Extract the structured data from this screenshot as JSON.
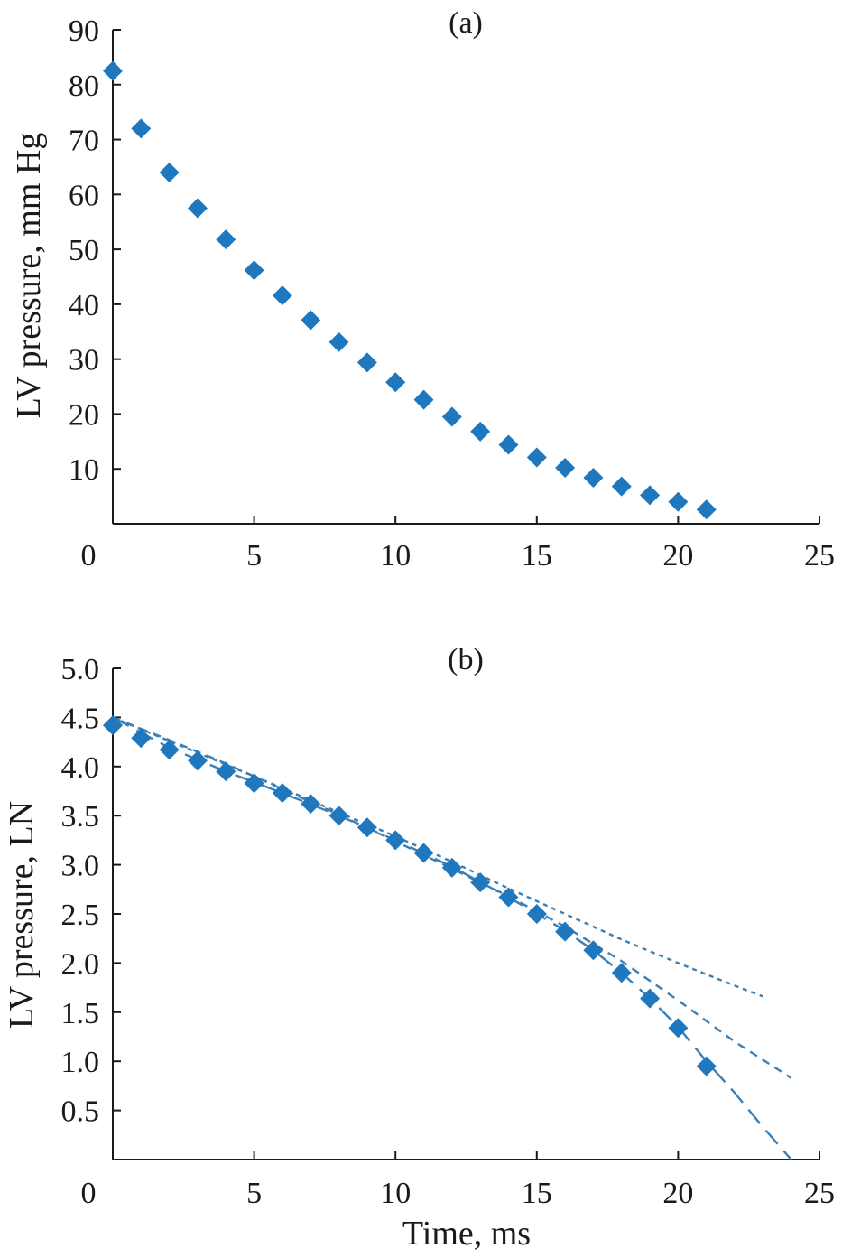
{
  "chart_data": [
    {
      "type": "scatter",
      "panel_label": "(a)",
      "xlabel": "",
      "ylabel": "LV pressure, mm Hg",
      "xlim": [
        0,
        25
      ],
      "ylim": [
        0,
        90
      ],
      "x_ticks": [
        "0",
        "5",
        "10",
        "15",
        "20",
        "25"
      ],
      "x_tick_values": [
        0,
        5,
        10,
        15,
        20,
        25
      ],
      "y_ticks": [
        "10",
        "20",
        "30",
        "40",
        "50",
        "60",
        "70",
        "80",
        "90"
      ],
      "y_tick_values": [
        10,
        20,
        30,
        40,
        50,
        60,
        70,
        80,
        90
      ],
      "marker_color": "#1f77bd",
      "series": [
        {
          "marker": "diamond",
          "x": [
            0,
            1,
            2,
            3,
            4,
            5,
            6,
            7,
            8,
            9,
            10,
            11,
            12,
            13,
            14,
            15,
            16,
            17,
            18,
            19,
            20,
            21
          ],
          "y": [
            82.5,
            72,
            64,
            57.5,
            51.8,
            46.2,
            41.6,
            37.1,
            33.1,
            29.4,
            25.8,
            22.6,
            19.5,
            16.8,
            14.4,
            12.1,
            10.2,
            8.4,
            6.8,
            5.2,
            4,
            2.6
          ]
        }
      ]
    },
    {
      "type": "scatter",
      "panel_label": "(b)",
      "xlabel": "Time, ms",
      "ylabel": "LV pressure, LN",
      "xlim": [
        0,
        25
      ],
      "ylim": [
        0,
        5
      ],
      "x_ticks": [
        "0",
        "5",
        "10",
        "15",
        "20",
        "25"
      ],
      "x_tick_values": [
        0,
        5,
        10,
        15,
        20,
        25
      ],
      "y_ticks": [
        "0.5",
        "1.0",
        "1.5",
        "2.0",
        "2.5",
        "3.0",
        "3.5",
        "4.0",
        "4.5",
        "5.0"
      ],
      "y_tick_values": [
        0.5,
        1,
        1.5,
        2,
        2.5,
        3,
        3.5,
        4,
        4.5,
        5
      ],
      "marker_color": "#1f77bd",
      "line_color": "#3a7fb5",
      "series": [
        {
          "marker": "diamond",
          "x": [
            0,
            1,
            2,
            3,
            4,
            5,
            6,
            7,
            8,
            9,
            10,
            11,
            12,
            13,
            14,
            15,
            16,
            17,
            18,
            19,
            20,
            21
          ],
          "y": [
            4.42,
            4.29,
            4.17,
            4.06,
            3.95,
            3.83,
            3.73,
            3.62,
            3.5,
            3.38,
            3.25,
            3.12,
            2.97,
            2.82,
            2.67,
            2.5,
            2.32,
            2.13,
            1.9,
            1.64,
            1.34,
            0.95
          ]
        }
      ],
      "fit_lines": [
        {
          "style": "short-dash",
          "x": [
            0,
            2,
            4,
            6,
            8,
            10,
            12,
            14,
            16,
            18,
            20,
            22,
            23
          ],
          "y": [
            4.5,
            4.26,
            4.02,
            3.78,
            3.53,
            3.29,
            3.03,
            2.76,
            2.5,
            2.24,
            2.0,
            1.77,
            1.66
          ]
        },
        {
          "style": "medium-dash",
          "x": [
            0,
            2,
            4,
            6,
            8,
            10,
            12,
            14,
            16,
            18,
            20,
            22,
            24
          ],
          "y": [
            4.5,
            4.27,
            4.03,
            3.77,
            3.51,
            3.24,
            2.96,
            2.68,
            2.37,
            2.02,
            1.62,
            1.2,
            0.83
          ]
        },
        {
          "style": "long-dash",
          "x": [
            0,
            2,
            4,
            6,
            8,
            10,
            12,
            14,
            16,
            17,
            18,
            19,
            20,
            21,
            22,
            23,
            24
          ],
          "y": [
            4.5,
            4.19,
            3.95,
            3.73,
            3.5,
            3.25,
            2.98,
            2.67,
            2.33,
            2.13,
            1.9,
            1.64,
            1.35,
            1.0,
            0.68,
            0.33,
            0.0
          ]
        }
      ]
    }
  ]
}
